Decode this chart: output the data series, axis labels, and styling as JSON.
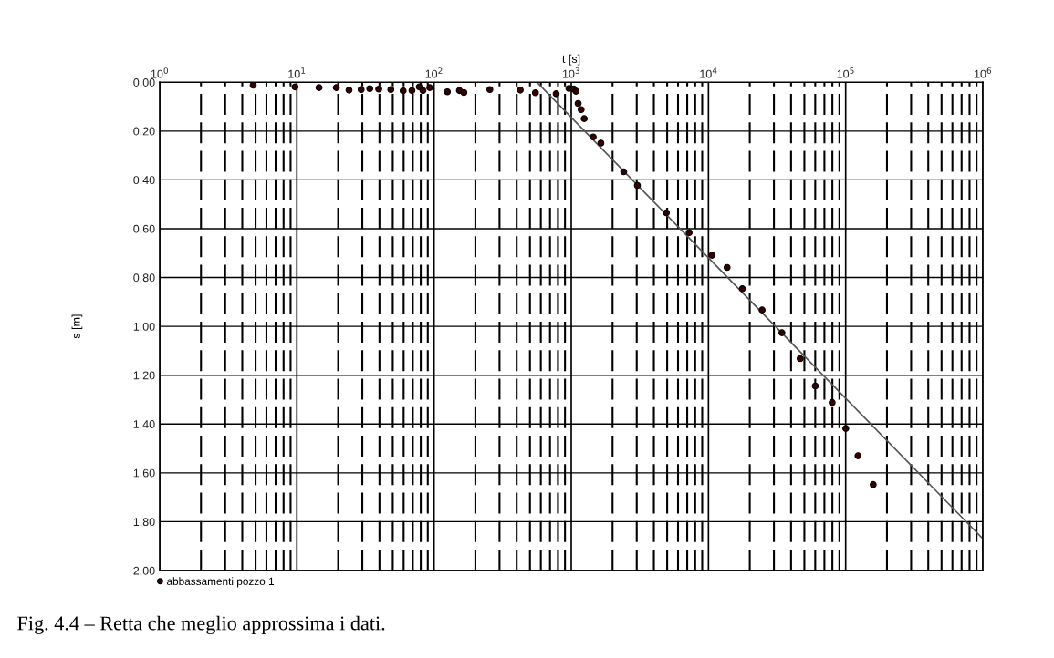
{
  "chart_data": {
    "type": "scatter",
    "xlabel": "t [s]",
    "ylabel": "s [m]",
    "log": "x",
    "grid": true,
    "legend": "bottom left",
    "xlim": [
      1,
      1000000
    ],
    "xticks": [
      {
        "value": 1,
        "label": "10$^{0}$"
      },
      {
        "value": 10,
        "label": "10$^{1}$"
      },
      {
        "value": 100,
        "label": "10$^{2}$"
      },
      {
        "value": 1000,
        "label": "10$^{3}$"
      },
      {
        "value": 10000,
        "label": "10$^{4}$"
      },
      {
        "value": 100000,
        "label": "10$^{5}$"
      },
      {
        "value": 1000000,
        "label": "10$^{6}$"
      }
    ],
    "ylim": [
      2.0,
      0.0
    ],
    "yticks": [
      {
        "value": 0,
        "label": "0.00"
      },
      {
        "value": 0.2,
        "label": "0.20"
      },
      {
        "value": 0.4,
        "label": "0.40"
      },
      {
        "value": 0.6,
        "label": "0.60"
      },
      {
        "value": 0.8,
        "label": "0.80"
      },
      {
        "value": 1.0,
        "label": "1.00"
      },
      {
        "value": 1.2,
        "label": "1.20"
      },
      {
        "value": 1.4,
        "label": "1.40"
      },
      {
        "value": 1.6,
        "label": "1.60"
      },
      {
        "value": 1.8,
        "label": "1.80"
      },
      {
        "value": 2.0,
        "label": "2.00"
      }
    ],
    "series": [
      {
        "name": "abbassamenti pozzo 1",
        "marker": "circle",
        "color": "#3a0000",
        "x": [
          4.8,
          9.7,
          14.5,
          19.4,
          24,
          29.4,
          34,
          39.5,
          48.4,
          59.5,
          69,
          78,
          83,
          93,
          125,
          153,
          165,
          255,
          425,
          548,
          776,
          961,
          1038,
          1082,
          1122,
          1180,
          1242,
          1445,
          1644,
          2411,
          3034,
          4933,
          7228,
          10600,
          13670,
          17660,
          24600,
          34300,
          46600,
          60100,
          79700,
          100200,
          123000,
          158800
        ],
        "values": [
          0.012,
          0.019,
          0.022,
          0.022,
          0.032,
          0.03,
          0.026,
          0.028,
          0.03,
          0.035,
          0.034,
          0.019,
          0.034,
          0.022,
          0.039,
          0.034,
          0.042,
          0.03,
          0.032,
          0.043,
          0.047,
          0.025,
          0.027,
          0.037,
          0.087,
          0.112,
          0.149,
          0.224,
          0.249,
          0.367,
          0.423,
          0.535,
          0.616,
          0.709,
          0.759,
          0.846,
          0.933,
          1.026,
          1.132,
          1.244,
          1.312,
          1.418,
          1.53,
          1.648
        ]
      },
      {
        "type": "line",
        "color": "#555555",
        "x": [
          562,
          1000000
        ],
        "values": [
          0.0,
          1.87
        ]
      }
    ],
    "annotations": [
      "Fig. 4.4 – Retta che meglio approssima i dati."
    ]
  }
}
